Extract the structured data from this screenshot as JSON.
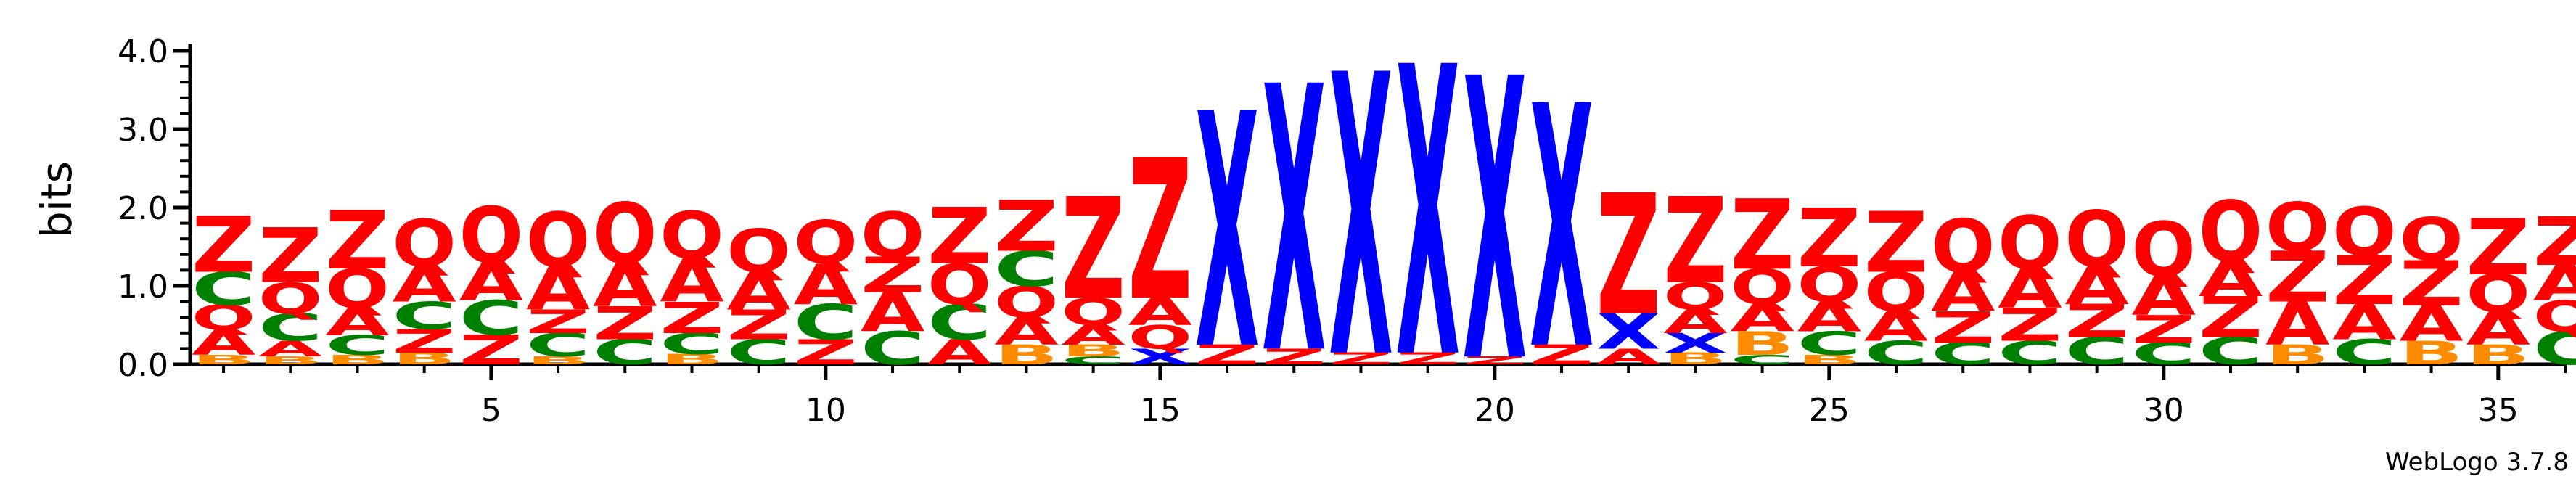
{
  "chart_data": {
    "type": "sequence-logo",
    "ylabel": "bits",
    "ylim": [
      0,
      4.0
    ],
    "y_ticks": [
      "0.0",
      "1.0",
      "2.0",
      "3.0",
      "4.0"
    ],
    "x_range": [
      1,
      36
    ],
    "x_ticks": [
      "5",
      "10",
      "15",
      "20",
      "25",
      "30",
      "35"
    ],
    "footer": "WebLogo 3.7.8",
    "colors": {
      "Z": "#ff0000",
      "Q": "#ff0000",
      "A": "#ff0000",
      "C": "#008000",
      "B": "#ff8c00",
      "X": "#0000ff"
    },
    "positions": [
      [
        [
          "B",
          0.12
        ],
        [
          "A",
          0.32
        ],
        [
          "Q",
          0.32
        ],
        [
          "C",
          0.42
        ],
        [
          "Z",
          0.72
        ]
      ],
      [
        [
          "B",
          0.1
        ],
        [
          "A",
          0.2
        ],
        [
          "C",
          0.35
        ],
        [
          "Q",
          0.4
        ],
        [
          "Z",
          0.7
        ]
      ],
      [
        [
          "B",
          0.12
        ],
        [
          "C",
          0.25
        ],
        [
          "A",
          0.35
        ],
        [
          "Q",
          0.5
        ],
        [
          "Z",
          0.75
        ]
      ],
      [
        [
          "B",
          0.15
        ],
        [
          "Z",
          0.3
        ],
        [
          "C",
          0.35
        ],
        [
          "A",
          0.45
        ],
        [
          "Q",
          0.6
        ]
      ],
      [
        [
          "Z",
          0.38
        ],
        [
          "C",
          0.44
        ],
        [
          "A",
          0.48
        ],
        [
          "Q",
          0.72
        ]
      ],
      [
        [
          "B",
          0.1
        ],
        [
          "C",
          0.3
        ],
        [
          "Z",
          0.3
        ],
        [
          "A",
          0.55
        ],
        [
          "Q",
          0.7
        ]
      ],
      [
        [
          "C",
          0.32
        ],
        [
          "Z",
          0.42
        ],
        [
          "A",
          0.55
        ],
        [
          "Q",
          0.78
        ]
      ],
      [
        [
          "B",
          0.13
        ],
        [
          "C",
          0.27
        ],
        [
          "Z",
          0.4
        ],
        [
          "A",
          0.55
        ],
        [
          "Q",
          0.6
        ]
      ],
      [
        [
          "C",
          0.32
        ],
        [
          "Z",
          0.38
        ],
        [
          "A",
          0.48
        ],
        [
          "Q",
          0.55
        ]
      ],
      [
        [
          "Z",
          0.32
        ],
        [
          "C",
          0.45
        ],
        [
          "A",
          0.52
        ],
        [
          "Q",
          0.55
        ]
      ],
      [
        [
          "C",
          0.42
        ],
        [
          "A",
          0.5
        ],
        [
          "Z",
          0.45
        ],
        [
          "Q",
          0.58
        ]
      ],
      [
        [
          "A",
          0.32
        ],
        [
          "C",
          0.45
        ],
        [
          "Q",
          0.52
        ],
        [
          "Z",
          0.72
        ]
      ],
      [
        [
          "B",
          0.25
        ],
        [
          "A",
          0.35
        ],
        [
          "Q",
          0.4
        ],
        [
          "C",
          0.45
        ],
        [
          "Z",
          0.65
        ]
      ],
      [
        [
          "C",
          0.1
        ],
        [
          "B",
          0.15
        ],
        [
          "A",
          0.25
        ],
        [
          "Q",
          0.35
        ],
        [
          "Z",
          1.3
        ]
      ],
      [
        [
          "X",
          0.2
        ],
        [
          "Q",
          0.3
        ],
        [
          "A",
          0.35
        ],
        [
          "Z",
          1.8
        ]
      ],
      [
        [
          "Z",
          0.25
        ],
        [
          "X",
          3.0
        ]
      ],
      [
        [
          "Z",
          0.2
        ],
        [
          "X",
          3.4
        ]
      ],
      [
        [
          "Z",
          0.15
        ],
        [
          "X",
          3.6
        ]
      ],
      [
        [
          "Z",
          0.15
        ],
        [
          "X",
          3.7
        ]
      ],
      [
        [
          "Z",
          0.1
        ],
        [
          "X",
          3.6
        ]
      ],
      [
        [
          "Z",
          0.25
        ],
        [
          "X",
          3.1
        ]
      ],
      [
        [
          "A",
          0.2
        ],
        [
          "X",
          0.45
        ],
        [
          "Z",
          1.55
        ]
      ],
      [
        [
          "B",
          0.15
        ],
        [
          "X",
          0.25
        ],
        [
          "A",
          0.3
        ],
        [
          "Q",
          0.35
        ],
        [
          "Z",
          1.1
        ]
      ],
      [
        [
          "C",
          0.12
        ],
        [
          "B",
          0.3
        ],
        [
          "A",
          0.35
        ],
        [
          "Q",
          0.45
        ],
        [
          "Z",
          0.9
        ]
      ],
      [
        [
          "B",
          0.12
        ],
        [
          "C",
          0.3
        ],
        [
          "A",
          0.38
        ],
        [
          "Q",
          0.45
        ],
        [
          "Z",
          0.75
        ]
      ],
      [
        [
          "C",
          0.3
        ],
        [
          "A",
          0.38
        ],
        [
          "Q",
          0.5
        ],
        [
          "Z",
          0.78
        ]
      ],
      [
        [
          "C",
          0.28
        ],
        [
          "Z",
          0.4
        ],
        [
          "A",
          0.5
        ],
        [
          "Q",
          0.68
        ]
      ],
      [
        [
          "C",
          0.3
        ],
        [
          "Z",
          0.42
        ],
        [
          "A",
          0.5
        ],
        [
          "Q",
          0.68
        ]
      ],
      [
        [
          "C",
          0.35
        ],
        [
          "Z",
          0.42
        ],
        [
          "A",
          0.48
        ],
        [
          "Q",
          0.72
        ]
      ],
      [
        [
          "C",
          0.28
        ],
        [
          "Z",
          0.35
        ],
        [
          "A",
          0.5
        ],
        [
          "Q",
          0.7
        ]
      ],
      [
        [
          "C",
          0.35
        ],
        [
          "Z",
          0.52
        ],
        [
          "A",
          0.45
        ],
        [
          "Q",
          0.78
        ]
      ],
      [
        [
          "B",
          0.25
        ],
        [
          "A",
          0.55
        ],
        [
          "Z",
          0.65
        ],
        [
          "Q",
          0.62
        ]
      ],
      [
        [
          "C",
          0.32
        ],
        [
          "A",
          0.45
        ],
        [
          "Z",
          0.62
        ],
        [
          "Q",
          0.62
        ]
      ],
      [
        [
          "B",
          0.3
        ],
        [
          "A",
          0.45
        ],
        [
          "Z",
          0.58
        ],
        [
          "Q",
          0.55
        ]
      ],
      [
        [
          "B",
          0.25
        ],
        [
          "A",
          0.42
        ],
        [
          "Q",
          0.48
        ],
        [
          "Z",
          0.72
        ]
      ],
      [
        [
          "C",
          0.42
        ],
        [
          "Q",
          0.4
        ],
        [
          "A",
          0.45
        ],
        [
          "Z",
          0.62
        ]
      ]
    ]
  }
}
